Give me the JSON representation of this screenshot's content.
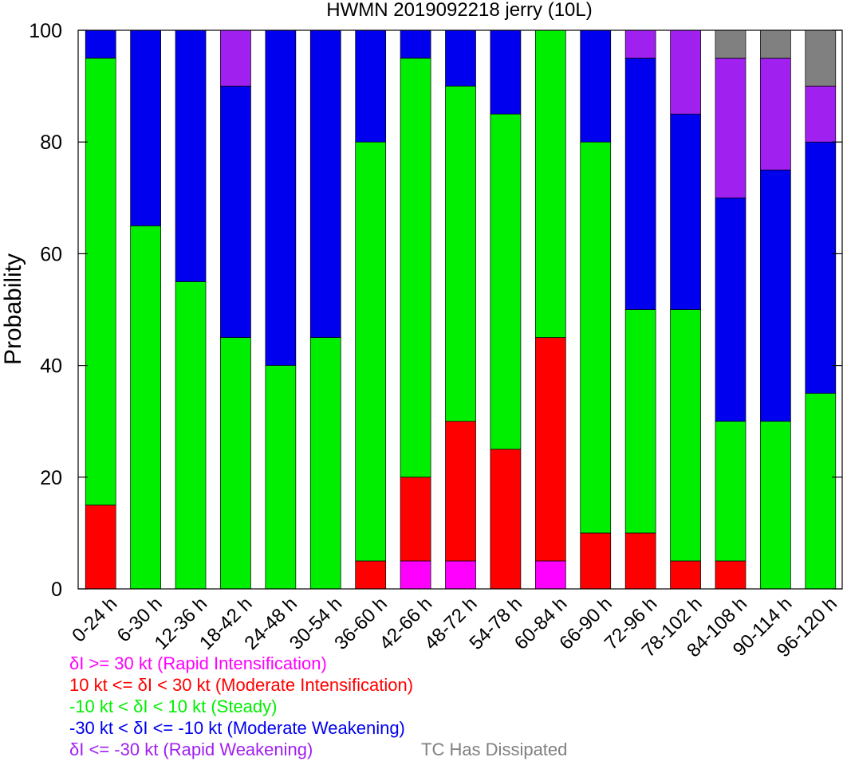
{
  "chart_data": {
    "type": "bar",
    "stacked": true,
    "title": "HWMN 2019092218 jerry (10L)",
    "ylabel": "Probability",
    "xlabel": "",
    "ylim": [
      0,
      100
    ],
    "yticks": [
      0,
      20,
      40,
      60,
      80,
      100
    ],
    "categories": [
      "0-24 h",
      "6-30 h",
      "12-36 h",
      "18-42 h",
      "24-48 h",
      "30-54 h",
      "36-60 h",
      "42-66 h",
      "48-72 h",
      "54-78 h",
      "60-84 h",
      "66-90 h",
      "72-96 h",
      "78-102 h",
      "84-108 h",
      "90-114 h",
      "96-120 h"
    ],
    "series": [
      {
        "name": "Rapid Intensification",
        "color": "#ff00ff",
        "values": [
          0,
          0,
          0,
          0,
          0,
          0,
          0,
          5,
          5,
          0,
          5,
          0,
          0,
          0,
          0,
          0,
          0
        ]
      },
      {
        "name": "Moderate Intensification",
        "color": "#ff0000",
        "values": [
          15,
          0,
          0,
          0,
          0,
          0,
          5,
          15,
          25,
          25,
          40,
          10,
          10,
          5,
          5,
          0,
          0
        ]
      },
      {
        "name": "Steady",
        "color": "#00ee00",
        "values": [
          80,
          65,
          55,
          45,
          40,
          45,
          75,
          75,
          60,
          60,
          55,
          70,
          40,
          45,
          25,
          30,
          35
        ]
      },
      {
        "name": "Moderate Weakening",
        "color": "#0000ee",
        "values": [
          5,
          35,
          45,
          45,
          60,
          55,
          20,
          5,
          10,
          15,
          0,
          20,
          45,
          35,
          40,
          45,
          45
        ]
      },
      {
        "name": "Rapid Weakening",
        "color": "#a020f0",
        "values": [
          0,
          0,
          0,
          10,
          0,
          0,
          0,
          0,
          0,
          0,
          0,
          0,
          5,
          15,
          25,
          20,
          10
        ]
      },
      {
        "name": "TC Has Dissipated",
        "color": "#808080",
        "values": [
          0,
          0,
          0,
          0,
          0,
          0,
          0,
          0,
          0,
          0,
          0,
          0,
          0,
          0,
          5,
          5,
          10
        ]
      }
    ]
  },
  "legend": {
    "ri": "δI >= 30 kt (Rapid Intensification)",
    "mi": "10 kt <= δI < 30 kt (Moderate Intensification)",
    "st": "-10 kt < δI < 10 kt (Steady)",
    "mw": "-30 kt < δI <= -10 kt (Moderate Weakening)",
    "rw": "δI <= -30 kt (Rapid Weakening)",
    "td": "TC Has Dissipated"
  }
}
